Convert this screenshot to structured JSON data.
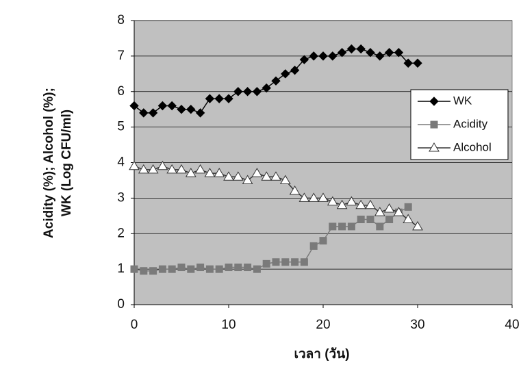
{
  "chart_data": {
    "type": "line",
    "x_label": "เวลา (วัน)",
    "y_label": [
      "Acidity (%); Alcohol (%);",
      "WK (Log CFU/ml)"
    ],
    "x": [
      0,
      1,
      2,
      3,
      4,
      5,
      6,
      7,
      8,
      9,
      10,
      11,
      12,
      13,
      14,
      15,
      16,
      17,
      18,
      19,
      20,
      21,
      22,
      23,
      24,
      25,
      26,
      27,
      28,
      29,
      30
    ],
    "series": [
      {
        "name": "WK",
        "color": "#000000",
        "marker": "diamond",
        "values": [
          5.6,
          5.4,
          5.4,
          5.6,
          5.6,
          5.5,
          5.5,
          5.4,
          5.8,
          5.8,
          5.8,
          6.0,
          6.0,
          6.0,
          6.1,
          6.3,
          6.5,
          6.6,
          6.9,
          7.0,
          7.0,
          7.0,
          7.1,
          7.2,
          7.2,
          7.1,
          7.0,
          7.1,
          7.1,
          6.8,
          6.8
        ]
      },
      {
        "name": "Acidity",
        "color": "#7a7a7a",
        "marker": "square",
        "values": [
          1.0,
          0.95,
          0.95,
          1.0,
          1.0,
          1.05,
          1.0,
          1.05,
          1.0,
          1.0,
          1.05,
          1.05,
          1.05,
          1.0,
          1.15,
          1.2,
          1.2,
          1.2,
          1.2,
          1.65,
          1.8,
          2.2,
          2.2,
          2.2,
          2.4,
          2.4,
          2.2,
          2.4,
          2.6,
          2.75,
          null
        ]
      },
      {
        "name": "Alcohol",
        "color": "#ffffff",
        "marker": "triangle",
        "values": [
          3.9,
          3.8,
          3.8,
          3.9,
          3.8,
          3.8,
          3.7,
          3.8,
          3.7,
          3.7,
          3.6,
          3.6,
          3.5,
          3.7,
          3.6,
          3.6,
          3.5,
          3.2,
          3.0,
          3.0,
          3.0,
          2.9,
          2.8,
          2.9,
          2.8,
          2.8,
          2.6,
          2.7,
          2.6,
          2.4,
          2.2
        ]
      }
    ],
    "xlim": [
      0,
      40
    ],
    "xticks": [
      0,
      10,
      20,
      30,
      40
    ],
    "ylim": [
      0,
      8
    ],
    "yticks": [
      0,
      1,
      2,
      3,
      4,
      5,
      6,
      7,
      8
    ],
    "grid": true,
    "legend": "right"
  }
}
